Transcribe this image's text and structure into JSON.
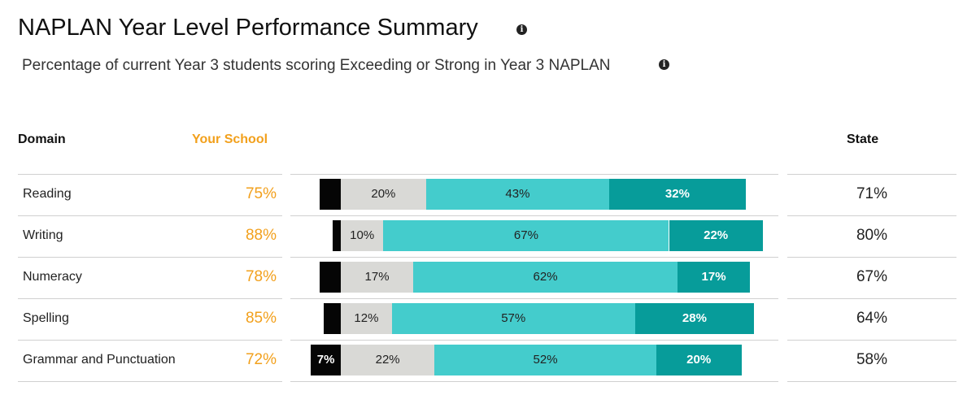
{
  "header": {
    "title": "NAPLAN Year Level Performance Summary",
    "subtitle": "Percentage of current Year 3 students scoring Exceeding or Strong in Year 3 NAPLAN"
  },
  "columns": {
    "domain": "Domain",
    "school": "Your School",
    "state": "State"
  },
  "colors": {
    "school_accent": "#f2a01c",
    "black": "#050505",
    "light": "#d9d9d6",
    "mid": "#44cccc",
    "dark": "#079c9a"
  },
  "icons": [
    "info-icon",
    "info-icon"
  ],
  "chart_data": {
    "type": "bar",
    "orientation": "horizontal",
    "stacked": true,
    "categories": [
      "Reading",
      "Writing",
      "Numeracy",
      "Spelling",
      "Grammar and Punctuation"
    ],
    "series": [
      {
        "values": [
          5,
          2,
          5,
          4,
          7
        ]
      },
      {
        "values": [
          20,
          10,
          17,
          12,
          22
        ]
      },
      {
        "values": [
          43,
          67,
          62,
          57,
          52
        ]
      },
      {
        "values": [
          32,
          22,
          17,
          28,
          20
        ]
      }
    ],
    "segment_labels": [
      [
        "",
        "20%",
        "43%",
        "32%"
      ],
      [
        "",
        "10%",
        "67%",
        "22%"
      ],
      [
        "",
        "17%",
        "62%",
        "17%"
      ],
      [
        "",
        "12%",
        "57%",
        "28%"
      ],
      [
        "7%",
        "22%",
        "52%",
        "20%"
      ]
    ]
  },
  "rows": [
    {
      "domain": "Reading",
      "school": "75%",
      "state": "71%"
    },
    {
      "domain": "Writing",
      "school": "88%",
      "state": "80%"
    },
    {
      "domain": "Numeracy",
      "school": "78%",
      "state": "67%"
    },
    {
      "domain": "Spelling",
      "school": "85%",
      "state": "64%"
    },
    {
      "domain": "Grammar and Punctuation",
      "school": "72%",
      "state": "58%"
    }
  ]
}
